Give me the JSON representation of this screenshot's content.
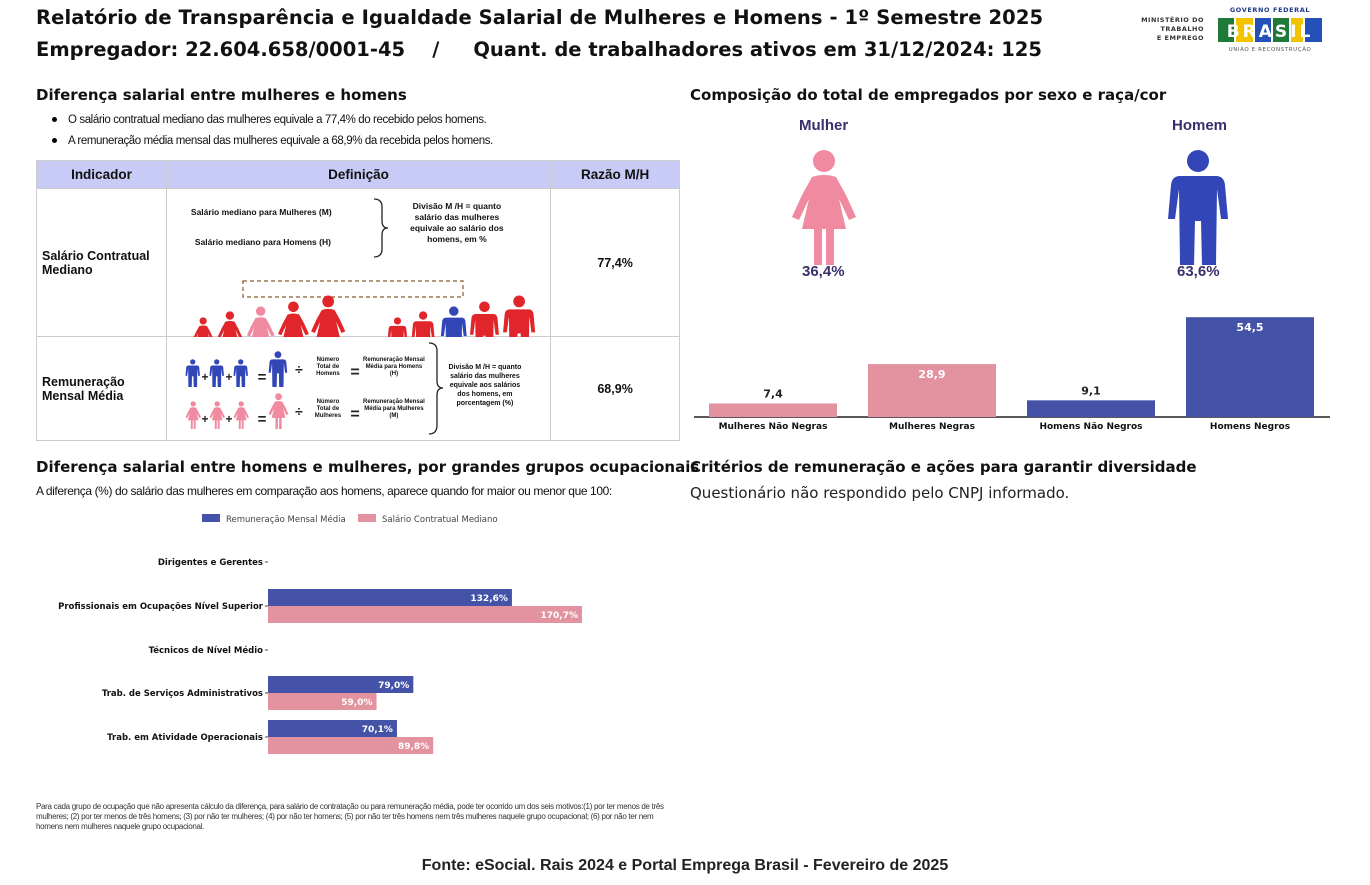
{
  "header": {
    "title": "Relatório de Transparência e Igualdade Salarial de Mulheres e Homens - 1º Semestre 2025",
    "employer_line": "Empregador: 22.604.658/0001-45    /     Quant. de trabalhadores ativos em 31/12/2024: 125"
  },
  "logos": {
    "ministry": [
      "MINISTÉRIO DO",
      "TRABALHO",
      "E EMPREGO"
    ],
    "gov_top": "GOVERNO FEDERAL",
    "gov_word": "BRASIL",
    "gov_bottom": "UNIÃO E RECONSTRUÇÃO"
  },
  "salary_diff": {
    "title": "Diferença salarial entre mulheres e homens",
    "bullets": [
      "O salário contratual mediano das mulheres equivale a 77,4% do recebido pelos homens.",
      "A remuneração média mensal das mulheres equivale a 68,9% da recebida pelos homens."
    ],
    "table": {
      "headers": [
        "Indicador",
        "Definição",
        "Razão M/H"
      ],
      "rows": [
        {
          "name": "Salário Contratual Mediano",
          "ratio": "77,4%",
          "def_women": "Salário mediano para Mulheres (M)",
          "def_men": "Salário mediano para Homens (H)",
          "def_text": "Divisão M /H = quanto salário das mulheres equivale ao salário dos homens, em %"
        },
        {
          "name": "Remuneração Mensal Média",
          "ratio": "68,9%",
          "count_men": "Número Total de Homens",
          "count_women": "Número Total de Mulheres",
          "avg_men": "Remuneração Mensal Média para Homens (H)",
          "avg_women": "Remuneração Mensal Média para Mulheres (M)",
          "def_text": "Divisão M /H = quanto salário das mulheres equivale aos salários dos homens, em porcentagem (%)"
        }
      ]
    }
  },
  "composition": {
    "title": "Composição do total de empregados por sexo e raça/cor",
    "women_label": "Mulher",
    "women_pct": "36,4%",
    "men_label": "Homem",
    "men_pct": "63,6%"
  },
  "occupational": {
    "title": "Diferença salarial entre homens e mulheres, por grandes grupos ocupacionais",
    "subtitle": "A diferença (%) do salário das mulheres em comparação aos homens, aparece quando for maior ou menor que 100:",
    "note": "Para cada grupo de ocupação que não apresenta cálculo da diferença, para salário de contratação ou para remuneração média, pode ter ocorrido um dos seis motivos:(1) por ter menos de três mulheres; (2) por ter menos de três homens; (3) por não ter mulheres; (4) por não ter homens; (5) por não ter três homens nem três mulheres naquele grupo ocupacional; (6) por não ter nem homens nem mulheres naquele grupo ocupacional."
  },
  "criteria": {
    "title": "Critérios de remuneração e ações para garantir diversidade",
    "text": "Questionário não respondido pelo CNPJ informado."
  },
  "footer": "Fonte: eSocial. Rais 2024 e Portal Emprega Brasil - Fevereiro de 2025",
  "colors": {
    "pink": "#e3929f",
    "blue": "#4452a8",
    "woman_icon": "#f08aa0",
    "man_icon": "#3346b8",
    "red_icon": "#e0262b",
    "header_bg": "#c8cbf5"
  },
  "chart_data": [
    {
      "type": "bar",
      "categories": [
        "Mulheres Não Negras",
        "Mulheres Negras",
        "Homens Não Negros",
        "Homens Negros"
      ],
      "values": [
        7.4,
        28.9,
        9.1,
        54.5
      ],
      "value_labels": [
        "7,4",
        "28,9",
        "9,1",
        "54,5"
      ],
      "bar_colors": [
        "#e3929f",
        "#e3929f",
        "#4452a8",
        "#4452a8"
      ],
      "ylim": [
        0,
        60
      ],
      "grid": false
    },
    {
      "type": "bar",
      "orientation": "horizontal",
      "categories": [
        "Dirigentes e Gerentes",
        "Profissionais em Ocupações Nível Superior",
        "Técnicos de Nível Médio",
        "Trab. de Serviços Administrativos",
        "Trab. em Atividade Operacionais"
      ],
      "series": [
        {
          "name": "Remuneração Mensal Média",
          "color": "#4452a8",
          "values": [
            null,
            132.6,
            null,
            79.0,
            70.1
          ],
          "labels": [
            "",
            "132,6%",
            "",
            "79,0%",
            "70,1%"
          ]
        },
        {
          "name": "Salário Contratual Mediano",
          "color": "#e3929f",
          "values": [
            null,
            170.7,
            null,
            59.0,
            89.8
          ],
          "labels": [
            "",
            "170,7%",
            "",
            "59,0%",
            "89,8%"
          ]
        }
      ],
      "xlim": [
        0,
        200
      ],
      "legend": "top",
      "grid": false
    }
  ]
}
